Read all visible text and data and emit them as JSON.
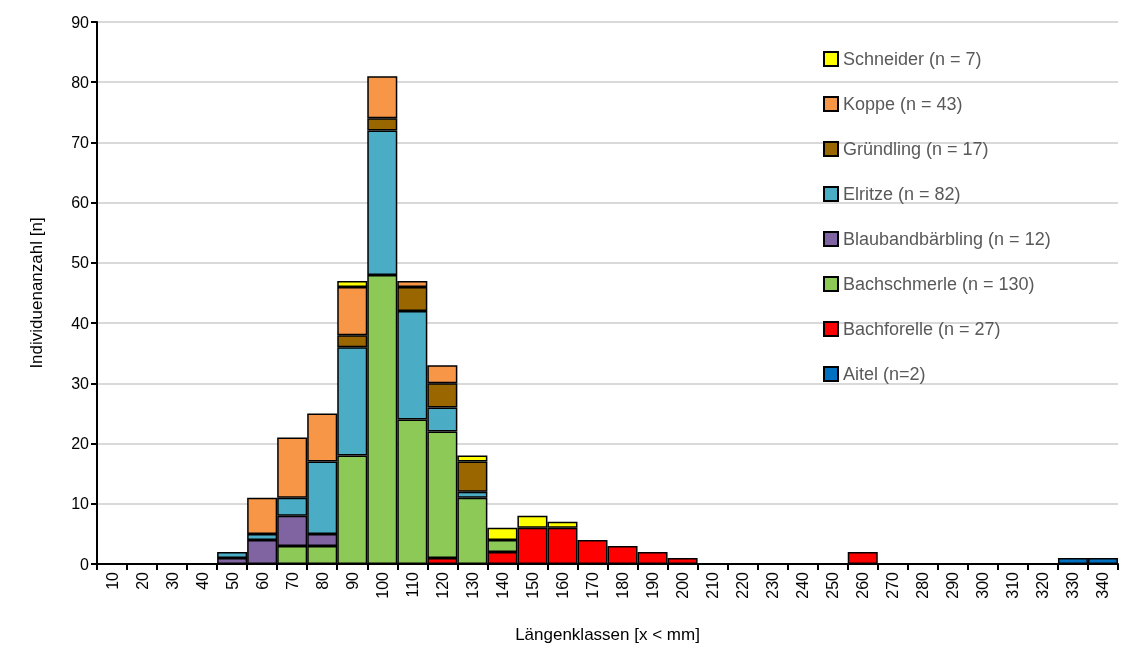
{
  "chart_data": {
    "type": "bar",
    "stacked": true,
    "xlabel": "Längenklassen [x < mm]",
    "ylabel": "Individuenanzahl [n]",
    "categories": [
      "10",
      "20",
      "30",
      "40",
      "50",
      "60",
      "70",
      "80",
      "90",
      "100",
      "110",
      "120",
      "130",
      "140",
      "150",
      "160",
      "170",
      "180",
      "190",
      "200",
      "210",
      "220",
      "230",
      "240",
      "250",
      "260",
      "270",
      "280",
      "290",
      "300",
      "310",
      "320",
      "330",
      "340"
    ],
    "ylim": [
      0,
      90
    ],
    "yticks": [
      0,
      10,
      20,
      30,
      40,
      50,
      60,
      70,
      80,
      90
    ],
    "grid": "y",
    "legend": "top right",
    "series": [
      {
        "name": "Aitel (n=2)",
        "color": "#0070c0",
        "values": [
          null,
          null,
          null,
          null,
          null,
          null,
          null,
          null,
          null,
          null,
          null,
          null,
          null,
          null,
          null,
          null,
          null,
          null,
          null,
          null,
          null,
          null,
          null,
          null,
          null,
          null,
          null,
          null,
          null,
          null,
          null,
          null,
          1,
          1
        ]
      },
      {
        "name": "Bachforelle (n = 27)",
        "color": "#ff0000",
        "values": [
          null,
          null,
          null,
          null,
          null,
          null,
          null,
          null,
          null,
          null,
          null,
          1,
          null,
          2,
          6,
          6,
          4,
          3,
          2,
          1,
          null,
          null,
          null,
          null,
          null,
          2,
          null,
          null,
          null,
          null,
          null,
          null,
          null,
          null
        ]
      },
      {
        "name": "Bachschmerle (n = 130)",
        "color": "#8cc956",
        "values": [
          null,
          null,
          null,
          null,
          null,
          null,
          3,
          3,
          18,
          48,
          24,
          21,
          11,
          2,
          null,
          null,
          null,
          null,
          null,
          null,
          null,
          null,
          null,
          null,
          null,
          null,
          null,
          null,
          null,
          null,
          null,
          null,
          null,
          null
        ]
      },
      {
        "name": "Blaubandbärbling (n = 12)",
        "color": "#8064a2",
        "values": [
          null,
          null,
          null,
          null,
          1,
          4,
          5,
          2,
          null,
          null,
          null,
          null,
          null,
          null,
          null,
          null,
          null,
          null,
          null,
          null,
          null,
          null,
          null,
          null,
          null,
          null,
          null,
          null,
          null,
          null,
          null,
          null,
          null,
          null
        ]
      },
      {
        "name": "Elritze (n = 82)",
        "color": "#4bacc6",
        "values": [
          null,
          null,
          null,
          null,
          1,
          1,
          3,
          12,
          18,
          24,
          18,
          4,
          1,
          null,
          null,
          null,
          null,
          null,
          null,
          null,
          null,
          null,
          null,
          null,
          null,
          null,
          null,
          null,
          null,
          null,
          null,
          null,
          null,
          null
        ]
      },
      {
        "name": "Gründling (n = 17)",
        "color": "#996600",
        "values": [
          null,
          null,
          null,
          null,
          null,
          null,
          null,
          null,
          2,
          2,
          4,
          4,
          5,
          null,
          null,
          null,
          null,
          null,
          null,
          null,
          null,
          null,
          null,
          null,
          null,
          null,
          null,
          null,
          null,
          null,
          null,
          null,
          null,
          null
        ]
      },
      {
        "name": "Koppe (n = 43)",
        "color": "#f79646",
        "values": [
          null,
          null,
          null,
          null,
          null,
          6,
          10,
          8,
          8,
          7,
          1,
          3,
          null,
          null,
          null,
          null,
          null,
          null,
          null,
          null,
          null,
          null,
          null,
          null,
          null,
          null,
          null,
          null,
          null,
          null,
          null,
          null,
          null,
          null
        ]
      },
      {
        "name": "Schneider (n = 7)",
        "color": "#ffff00",
        "values": [
          null,
          null,
          null,
          null,
          null,
          null,
          null,
          null,
          1,
          null,
          null,
          null,
          1,
          2,
          2,
          1,
          null,
          null,
          null,
          null,
          null,
          null,
          null,
          null,
          null,
          null,
          null,
          null,
          null,
          null,
          null,
          null,
          null,
          null
        ]
      }
    ]
  }
}
